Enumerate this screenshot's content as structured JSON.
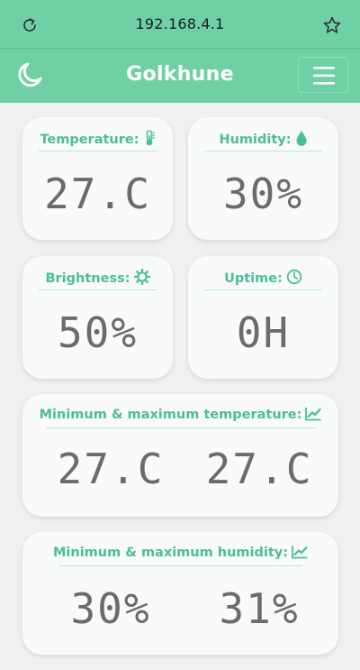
{
  "browser": {
    "url": "192.168.4.1",
    "reload_icon": "reload-icon",
    "bookmark_icon": "star-icon"
  },
  "header": {
    "title": "Golkhune",
    "theme_icon": "moon-icon",
    "menu_icon": "hamburger-menu-icon"
  },
  "colors": {
    "accent": "#6fd0a4",
    "label": "#4cbf92",
    "display": "#6b6b6b",
    "card_bg": "#f8fafb",
    "page_bg": "#eef0f2"
  },
  "cards": {
    "temperature": {
      "label": "Temperature:",
      "value": "27.C",
      "icon": "thermometer-icon"
    },
    "humidity": {
      "label": "Humidity:",
      "value": "30%",
      "icon": "water-drop-icon"
    },
    "brightness": {
      "label": "Brightness:",
      "value": "50%",
      "icon": "gear-sun-icon"
    },
    "uptime": {
      "label": "Uptime:",
      "value": "0H",
      "icon": "clock-icon"
    },
    "minmax_temperature": {
      "label": "Minimum & maximum temperature:",
      "min": "27.C",
      "max": "27.C",
      "icon": "chart-line-icon"
    },
    "minmax_humidity": {
      "label": "Minimum & maximum humidity:",
      "min": "30%",
      "max": "31%",
      "icon": "chart-line-icon"
    }
  }
}
